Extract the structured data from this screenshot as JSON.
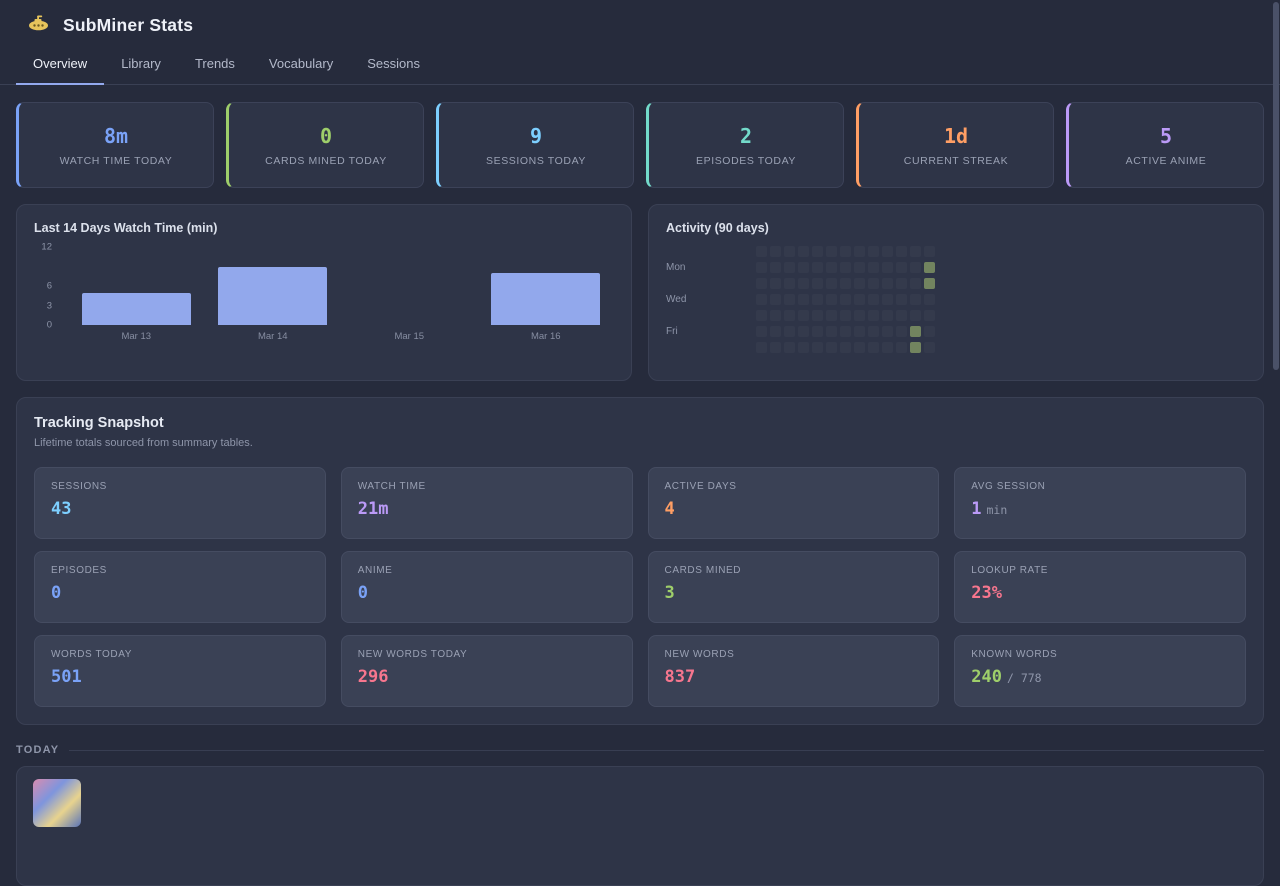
{
  "app": {
    "title": "SubMiner Stats",
    "icon": "submarine"
  },
  "tabs": [
    "Overview",
    "Library",
    "Trends",
    "Vocabulary",
    "Sessions"
  ],
  "active_tab": "Overview",
  "stat_cards": [
    {
      "value": "8m",
      "label": "WATCH TIME TODAY",
      "color": "#7aa2f7"
    },
    {
      "value": "0",
      "label": "CARDS MINED TODAY",
      "color": "#9ece6a"
    },
    {
      "value": "9",
      "label": "SESSIONS TODAY",
      "color": "#7dcfff"
    },
    {
      "value": "2",
      "label": "EPISODES TODAY",
      "color": "#73daca"
    },
    {
      "value": "1d",
      "label": "CURRENT STREAK",
      "color": "#ff9e64"
    },
    {
      "value": "5",
      "label": "ACTIVE ANIME",
      "color": "#bb9af7"
    }
  ],
  "chart_data": [
    {
      "type": "bar",
      "title": "Last 14 Days Watch Time (min)",
      "categories": [
        "Mar 13",
        "Mar 14",
        "Mar 15",
        "Mar 16"
      ],
      "values": [
        5,
        9,
        0,
        8
      ],
      "ylabel": "min",
      "ylim": [
        0,
        12
      ],
      "yticks": [
        0,
        3,
        6,
        12
      ],
      "bar_color": "#92a8ec",
      "grid": false,
      "legend": false
    },
    {
      "type": "heatmap",
      "title": "Activity (90 days)",
      "row_labels": [
        "Mon",
        "Wed",
        "Fri"
      ],
      "rows": 7,
      "cols": 13,
      "active_cells": [
        {
          "row": 1,
          "col": 12
        },
        {
          "row": 2,
          "col": 12
        },
        {
          "row": 5,
          "col": 11
        },
        {
          "row": 6,
          "col": 11
        }
      ],
      "active_color": "#72845f",
      "empty_color": "rgba(255,255,255,0.03)"
    }
  ],
  "tracking": {
    "title": "Tracking Snapshot",
    "subtitle": "Lifetime totals sourced from summary tables.",
    "cards": [
      {
        "label": "SESSIONS",
        "value": "43",
        "suffix": "",
        "color": "#7dcfff"
      },
      {
        "label": "WATCH TIME",
        "value": "21m",
        "suffix": "",
        "color": "#bb9af7"
      },
      {
        "label": "ACTIVE DAYS",
        "value": "4",
        "suffix": "",
        "color": "#ff9e64"
      },
      {
        "label": "AVG SESSION",
        "value": "1",
        "suffix": "min",
        "color": "#bb9af7"
      },
      {
        "label": "EPISODES",
        "value": "0",
        "suffix": "",
        "color": "#7aa2f7"
      },
      {
        "label": "ANIME",
        "value": "0",
        "suffix": "",
        "color": "#7aa2f7"
      },
      {
        "label": "CARDS MINED",
        "value": "3",
        "suffix": "",
        "color": "#9ece6a"
      },
      {
        "label": "LOOKUP RATE",
        "value": "23%",
        "suffix": "",
        "color": "#f7768e"
      },
      {
        "label": "WORDS TODAY",
        "value": "501",
        "suffix": "",
        "color": "#7aa2f7"
      },
      {
        "label": "NEW WORDS TODAY",
        "value": "296",
        "suffix": "",
        "color": "#f7768e"
      },
      {
        "label": "NEW WORDS",
        "value": "837",
        "suffix": "",
        "color": "#f7768e"
      },
      {
        "label": "KNOWN WORDS",
        "value": "240",
        "suffix": "/ 778",
        "color": "#9ece6a"
      }
    ]
  },
  "today": {
    "label": "TODAY"
  }
}
